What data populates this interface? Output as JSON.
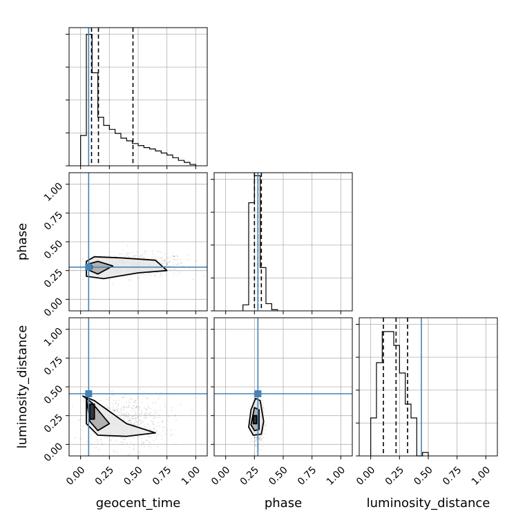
{
  "chart_data": {
    "type": "corner",
    "title": "",
    "parameters": [
      "geocent_time",
      "phase",
      "luminosity_distance"
    ],
    "range": [
      -0.1,
      1.1
    ],
    "ticks": [
      0.0,
      0.25,
      0.5,
      0.75,
      1.0
    ],
    "tick_labels": [
      "0.00",
      "0.25",
      "0.50",
      "0.75",
      "1.00"
    ],
    "grid": true,
    "truths": {
      "geocent_time": 0.07,
      "phase": 0.28,
      "luminosity_distance": 0.44
    },
    "colors": {
      "truth": "#4682b4",
      "hist": "#000000",
      "scatter": "#000000",
      "grid": "#b0b0b0"
    },
    "histograms": [
      {
        "param": "geocent_time",
        "bin_edges": [
          0.0,
          0.05,
          0.1,
          0.15,
          0.2,
          0.25,
          0.3,
          0.35,
          0.4,
          0.45,
          0.5,
          0.55,
          0.6,
          0.65,
          0.7,
          0.75,
          0.8,
          0.85,
          0.9,
          0.95,
          1.0
        ],
        "counts": [
          45,
          195,
          138,
          72,
          60,
          54,
          48,
          41,
          37,
          33,
          30,
          27,
          25,
          22,
          19,
          16,
          12,
          8,
          5,
          2
        ],
        "ymax": 205,
        "quantiles": [
          0.095,
          0.155,
          0.455
        ]
      },
      {
        "param": "phase",
        "bin_edges": [
          0.15,
          0.2,
          0.25,
          0.3,
          0.35,
          0.4,
          0.45
        ],
        "counts": [
          10,
          180,
          225,
          72,
          12,
          2
        ],
        "ymax": 230,
        "quantiles": [
          0.25,
          0.28,
          0.31
        ]
      },
      {
        "param": "luminosity_distance",
        "bin_edges": [
          0.0,
          0.05,
          0.1,
          0.15,
          0.2,
          0.25,
          0.3,
          0.35,
          0.4,
          0.45,
          0.5
        ],
        "counts": [
          55,
          135,
          180,
          180,
          160,
          120,
          75,
          55,
          0,
          5
        ],
        "ymax": 200,
        "quantiles": [
          0.11,
          0.22,
          0.32
        ]
      }
    ],
    "panels_2d": [
      {
        "x_param": "geocent_time",
        "y_param": "phase",
        "scatter": {
          "x_center": 0.5,
          "x_spread": 0.35,
          "y_center": 0.3,
          "y_spread": 0.05,
          "count": 500
        },
        "contours": [
          [
            [
              0.05,
              0.2
            ],
            [
              0.2,
              0.18
            ],
            [
              0.5,
              0.23
            ],
            [
              0.75,
              0.25
            ],
            [
              0.65,
              0.34
            ],
            [
              0.35,
              0.36
            ],
            [
              0.12,
              0.37
            ],
            [
              0.05,
              0.33
            ]
          ],
          [
            [
              0.08,
              0.25
            ],
            [
              0.15,
              0.22
            ],
            [
              0.28,
              0.29
            ],
            [
              0.15,
              0.33
            ],
            [
              0.08,
              0.31
            ]
          ],
          [
            [
              0.08,
              0.27
            ],
            [
              0.1,
              0.27
            ],
            [
              0.1,
              0.29
            ],
            [
              0.08,
              0.29
            ]
          ]
        ]
      },
      {
        "x_param": "geocent_time",
        "y_param": "luminosity_distance",
        "scatter": {
          "x_center": 0.4,
          "x_spread": 0.3,
          "y_center": 0.2,
          "y_spread": 0.12,
          "count": 500
        },
        "contours": [
          [
            [
              0.02,
              0.42
            ],
            [
              0.12,
              0.38
            ],
            [
              0.4,
              0.18
            ],
            [
              0.65,
              0.1
            ],
            [
              0.4,
              0.07
            ],
            [
              0.15,
              0.08
            ],
            [
              0.05,
              0.18
            ],
            [
              0.05,
              0.4
            ]
          ],
          [
            [
              0.05,
              0.4
            ],
            [
              0.1,
              0.36
            ],
            [
              0.25,
              0.18
            ],
            [
              0.15,
              0.12
            ],
            [
              0.08,
              0.2
            ]
          ],
          [
            [
              0.08,
              0.22
            ],
            [
              0.12,
              0.22
            ],
            [
              0.12,
              0.35
            ],
            [
              0.08,
              0.35
            ]
          ]
        ]
      },
      {
        "x_param": "phase",
        "y_param": "luminosity_distance",
        "scatter": {
          "x_center": 0.28,
          "x_spread": 0.04,
          "y_center": 0.2,
          "y_spread": 0.1,
          "count": 500
        },
        "contours": [
          [
            [
              0.2,
              0.15
            ],
            [
              0.24,
              0.08
            ],
            [
              0.31,
              0.09
            ],
            [
              0.33,
              0.2
            ],
            [
              0.3,
              0.38
            ],
            [
              0.26,
              0.4
            ],
            [
              0.22,
              0.3
            ]
          ],
          [
            [
              0.22,
              0.17
            ],
            [
              0.25,
              0.12
            ],
            [
              0.29,
              0.13
            ],
            [
              0.29,
              0.3
            ],
            [
              0.25,
              0.32
            ]
          ],
          [
            [
              0.24,
              0.18
            ],
            [
              0.27,
              0.18
            ],
            [
              0.27,
              0.25
            ],
            [
              0.24,
              0.25
            ]
          ]
        ]
      }
    ]
  }
}
